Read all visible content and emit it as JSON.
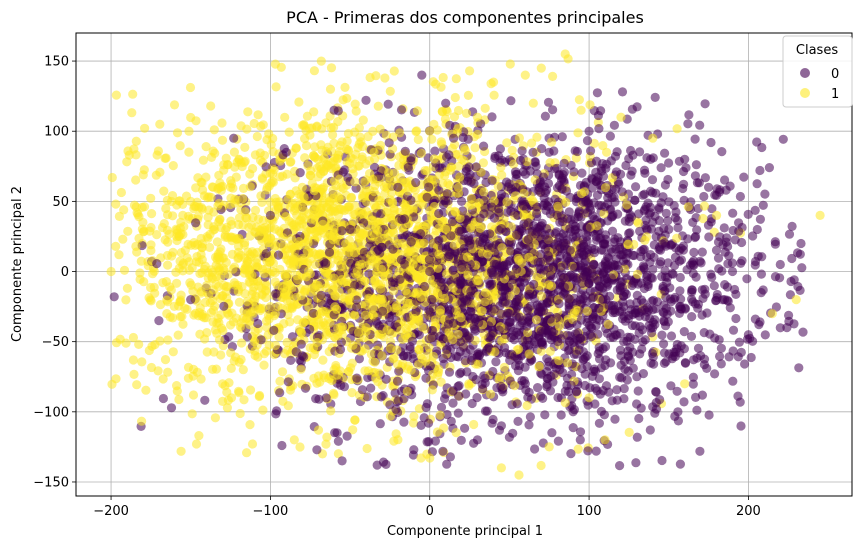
{
  "chart_data": {
    "type": "scatter",
    "title": "PCA - Primeras dos componentes principales",
    "xlabel": "Componente principal 1",
    "ylabel": "Componente principal 2",
    "xlim": [
      -222,
      265
    ],
    "ylim": [
      -160,
      170
    ],
    "xticks": [
      -200,
      -100,
      0,
      100,
      200
    ],
    "yticks": [
      -150,
      -100,
      -50,
      0,
      50,
      100,
      150
    ],
    "grid": true,
    "legend": {
      "title": "Clases",
      "position": "top-right",
      "entries": [
        {
          "label": "0",
          "color": "#440154"
        },
        {
          "label": "1",
          "color": "#fde725"
        }
      ]
    },
    "marker_alpha": 0.55,
    "series": [
      {
        "name": "0",
        "color": "#440154",
        "distribution": {
          "count": 2600,
          "mean_x": 60,
          "mean_y": -5,
          "std_x": 75,
          "std_y": 50,
          "x_range": [
            -200,
            235
          ],
          "y_range": [
            -140,
            130
          ]
        },
        "points": [
          [
            -198,
            -18
          ],
          [
            -33,
            -138
          ],
          [
            -55,
            -135
          ],
          [
            -123,
            95
          ],
          [
            233,
            20
          ],
          [
            200,
            -45
          ],
          [
            220,
            5
          ],
          [
            186,
            58
          ],
          [
            160,
            80
          ],
          [
            121,
            128
          ],
          [
            143,
            98
          ],
          [
            185,
            -20
          ],
          [
            175,
            60
          ],
          [
            -60,
            115
          ],
          [
            -40,
            122
          ],
          [
            -5,
            140
          ],
          [
            10,
            120
          ],
          [
            -10,
            -127
          ],
          [
            30,
            -120
          ],
          [
            -90,
            85
          ],
          [
            100,
            100
          ],
          [
            150,
            30
          ],
          [
            140,
            -40
          ],
          [
            120,
            -60
          ],
          [
            90,
            -100
          ],
          [
            60,
            -80
          ],
          [
            20,
            50
          ],
          [
            -20,
            60
          ],
          [
            -150,
            -20
          ],
          [
            -170,
            -35
          ],
          [
            170,
            -60
          ],
          [
            130,
            -75
          ],
          [
            110,
            20
          ],
          [
            80,
            40
          ],
          [
            50,
            -30
          ],
          [
            0,
            0
          ],
          [
            -50,
            30
          ],
          [
            -80,
            -60
          ],
          [
            -100,
            40
          ],
          [
            190,
            0
          ],
          [
            208,
            -15
          ],
          [
            165,
            35
          ],
          [
            155,
            -55
          ],
          [
            135,
            70
          ],
          [
            105,
            -85
          ],
          [
            75,
            85
          ],
          [
            45,
            -110
          ],
          [
            15,
            95
          ],
          [
            -25,
            -95
          ],
          [
            -65,
            -90
          ]
        ]
      },
      {
        "name": "1",
        "color": "#fde725",
        "distribution": {
          "count": 2600,
          "mean_x": -50,
          "mean_y": 10,
          "std_x": 75,
          "std_y": 50,
          "x_range": [
            -200,
            245
          ],
          "y_range": [
            -145,
            155
          ]
        },
        "points": [
          [
            -200,
            0
          ],
          [
            -195,
            12
          ],
          [
            -180,
            35
          ],
          [
            245,
            40
          ],
          [
            85,
            155
          ],
          [
            70,
            145
          ],
          [
            60,
            140
          ],
          [
            25,
            143
          ],
          [
            40,
            135
          ],
          [
            56,
            -145
          ],
          [
            45,
            -140
          ],
          [
            75,
            -125
          ],
          [
            110,
            -120
          ],
          [
            100,
            -90
          ],
          [
            -85,
            -120
          ],
          [
            -130,
            -80
          ],
          [
            -165,
            -30
          ],
          [
            -150,
            50
          ],
          [
            -100,
            70
          ],
          [
            -60,
            30
          ],
          [
            -20,
            20
          ],
          [
            20,
            80
          ],
          [
            -120,
            10
          ],
          [
            -140,
            -10
          ],
          [
            -40,
            -40
          ],
          [
            0,
            100
          ],
          [
            30,
            110
          ],
          [
            -80,
            60
          ],
          [
            -110,
            -50
          ],
          [
            -60,
            -70
          ],
          [
            120,
            110
          ],
          [
            180,
            40
          ],
          [
            230,
            -20
          ],
          [
            215,
            -30
          ],
          [
            160,
            -80
          ],
          [
            -175,
            15
          ],
          [
            -155,
            40
          ],
          [
            -125,
            60
          ],
          [
            -95,
            45
          ],
          [
            -70,
            10
          ],
          [
            -45,
            75
          ],
          [
            -15,
            45
          ],
          [
            10,
            30
          ],
          [
            35,
            -15
          ],
          [
            65,
            120
          ],
          [
            95,
            115
          ],
          [
            140,
            95
          ],
          [
            -30,
            -60
          ],
          [
            -100,
            -25
          ],
          [
            -135,
            30
          ]
        ]
      }
    ]
  }
}
